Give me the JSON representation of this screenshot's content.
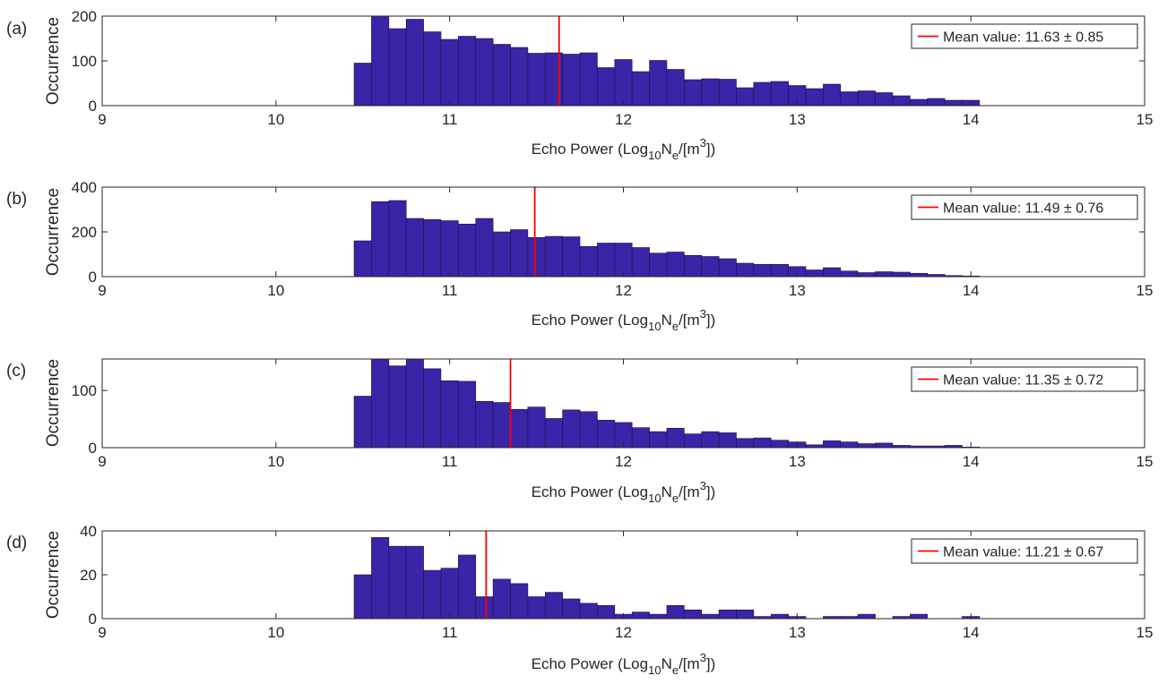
{
  "chart_data": [
    {
      "type": "bar",
      "panel_label": "(a)",
      "xlabel": "Echo Power (Log",
      "xlabel_sub": "10",
      "xlabel_mid": "N",
      "xlabel_sub2": "e",
      "xlabel_end": "/[m",
      "xlabel_sup": "3",
      "xlabel_close": "])",
      "ylabel": "Occurrence",
      "xlim": [
        9,
        15
      ],
      "ylim": [
        0,
        200
      ],
      "xticks": [
        "9",
        "10",
        "11",
        "12",
        "13",
        "14",
        "15"
      ],
      "yticks": [
        "0",
        "100",
        "200"
      ],
      "yticks_values": [
        0,
        100,
        200
      ],
      "bin_start": 10.45,
      "bin_width": 0.1,
      "values": [
        95,
        205,
        172,
        193,
        165,
        148,
        155,
        150,
        137,
        130,
        117,
        118,
        115,
        118,
        85,
        103,
        76,
        101,
        81,
        58,
        60,
        59,
        40,
        52,
        54,
        45,
        38,
        48,
        31,
        33,
        29,
        22,
        14,
        16,
        12,
        12
      ],
      "series": [
        {
          "name": "Mean value: 11.63 ± 0.85",
          "values_ref": "values"
        }
      ],
      "mean": 11.63,
      "legend_text": "Mean value: 11.63 ± 0.85",
      "legend_position": "top-right",
      "colors": {
        "bar": "#3a24a8",
        "mean": "#ff0000"
      }
    },
    {
      "type": "bar",
      "panel_label": "(b)",
      "xlabel": "Echo Power (Log",
      "xlabel_sub": "10",
      "xlabel_mid": "N",
      "xlabel_sub2": "e",
      "xlabel_end": "/[m",
      "xlabel_sup": "3",
      "xlabel_close": "])",
      "ylabel": "Occurrence",
      "xlim": [
        9,
        15
      ],
      "ylim": [
        0,
        400
      ],
      "xticks": [
        "9",
        "10",
        "11",
        "12",
        "13",
        "14",
        "15"
      ],
      "yticks": [
        "0",
        "200",
        "400"
      ],
      "yticks_values": [
        0,
        200,
        400
      ],
      "bin_start": 10.45,
      "bin_width": 0.1,
      "values": [
        160,
        335,
        340,
        260,
        255,
        250,
        235,
        260,
        200,
        210,
        175,
        180,
        178,
        135,
        150,
        150,
        130,
        105,
        110,
        95,
        90,
        80,
        60,
        55,
        55,
        45,
        30,
        40,
        25,
        18,
        22,
        20,
        15,
        10,
        5,
        3
      ],
      "series": [
        {
          "name": "Mean value: 11.49 ± 0.76",
          "values_ref": "values"
        }
      ],
      "mean": 11.49,
      "legend_text": "Mean value: 11.49 ± 0.76",
      "legend_position": "top-right",
      "colors": {
        "bar": "#3a24a8",
        "mean": "#ff0000"
      }
    },
    {
      "type": "bar",
      "panel_label": "(c)",
      "xlabel": "Echo Power (Log",
      "xlabel_sub": "10",
      "xlabel_mid": "N",
      "xlabel_sub2": "e",
      "xlabel_end": "/[m",
      "xlabel_sup": "3",
      "xlabel_close": "])",
      "ylabel": "Occurrence",
      "xlim": [
        9,
        15
      ],
      "ylim": [
        0,
        155
      ],
      "xticks": [
        "9",
        "10",
        "11",
        "12",
        "13",
        "14",
        "15"
      ],
      "yticks": [
        "0",
        "100"
      ],
      "yticks_values": [
        0,
        100
      ],
      "bin_start": 10.45,
      "bin_width": 0.1,
      "values": [
        90,
        158,
        143,
        157,
        138,
        117,
        116,
        81,
        79,
        67,
        71,
        51,
        66,
        63,
        48,
        44,
        35,
        28,
        34,
        24,
        28,
        26,
        16,
        17,
        13,
        10,
        5,
        12,
        10,
        7,
        8,
        4,
        3,
        3,
        4,
        1
      ],
      "series": [
        {
          "name": "Mean value: 11.35 ± 0.72",
          "values_ref": "values"
        }
      ],
      "mean": 11.35,
      "legend_text": "Mean value: 11.35 ± 0.72",
      "legend_position": "top-right",
      "colors": {
        "bar": "#3a24a8",
        "mean": "#ff0000"
      }
    },
    {
      "type": "bar",
      "panel_label": "(d)",
      "xlabel": "Echo Power (Log",
      "xlabel_sub": "10",
      "xlabel_mid": "N",
      "xlabel_sub2": "e",
      "xlabel_end": "/[m",
      "xlabel_sup": "3",
      "xlabel_close": "])",
      "ylabel": "Occurrence",
      "xlim": [
        9,
        15
      ],
      "ylim": [
        0,
        40
      ],
      "xticks": [
        "9",
        "10",
        "11",
        "12",
        "13",
        "14",
        "15"
      ],
      "yticks": [
        "0",
        "20",
        "40"
      ],
      "yticks_values": [
        0,
        20,
        40
      ],
      "bin_start": 10.45,
      "bin_width": 0.1,
      "values": [
        20,
        37,
        33,
        33,
        22,
        23,
        29,
        10,
        18,
        16,
        10,
        12,
        9,
        7,
        6,
        2,
        3,
        2,
        6,
        4,
        2,
        4,
        4,
        1,
        2,
        1,
        0,
        1,
        1,
        2,
        0,
        1,
        2,
        0,
        0,
        1
      ],
      "series": [
        {
          "name": "Mean value: 11.21 ± 0.67",
          "values_ref": "values"
        }
      ],
      "mean": 11.21,
      "legend_text": "Mean value: 11.21 ± 0.67",
      "legend_position": "top-right",
      "colors": {
        "bar": "#3a24a8",
        "mean": "#ff0000"
      }
    }
  ]
}
